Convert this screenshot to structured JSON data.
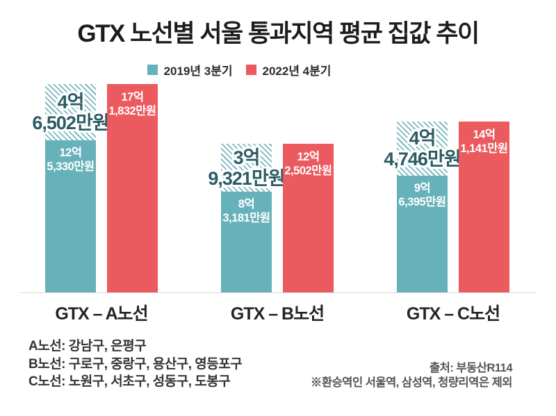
{
  "title": "GTX 노선별 서울 통과지역 평균 집값 추이",
  "legend": [
    {
      "label": "2019년 3분기",
      "color": "#67b2ba"
    },
    {
      "label": "2022년 4분기",
      "color": "#eb5a5e"
    }
  ],
  "colors": {
    "bar_2019": "#67b2ba",
    "bar_2022": "#eb5a5e",
    "hatch_stripe": "#79b7be",
    "increase_text": "#2b5c64",
    "axis_line": "#d9d9d9"
  },
  "chart_data": {
    "type": "bar",
    "title": "GTX 노선별 서울 통과지역 평균 집값 추이",
    "unit": "만원",
    "categories": [
      "GTX – A노선",
      "GTX – B노선",
      "GTX – C노선"
    ],
    "series": [
      {
        "name": "2019년 3분기",
        "color": "#67b2ba",
        "values": [
          125330,
          83181,
          96395
        ],
        "value_labels": [
          [
            "12억",
            "5,330만원"
          ],
          [
            "8억",
            "3,181만원"
          ],
          [
            "9억",
            "6,395만원"
          ]
        ]
      },
      {
        "name": "2022년 4분기",
        "color": "#eb5a5e",
        "values": [
          171832,
          122502,
          141141
        ],
        "value_labels": [
          [
            "17억",
            "1,832만원"
          ],
          [
            "12억",
            "2,502만원"
          ],
          [
            "14억",
            "1,141만원"
          ]
        ]
      }
    ],
    "increase_overlay": {
      "description": "hatched segment stacked on 2019 bar showing price increase up to the 2022 level",
      "values": [
        46502,
        39321,
        44746
      ],
      "value_labels": [
        [
          "4억",
          "6,502만원"
        ],
        [
          "3억",
          "9,321만원"
        ],
        [
          "4억",
          "4,746만원"
        ]
      ]
    },
    "ylim": [
      0,
      180000
    ],
    "grid": false,
    "legend_position": "top-center"
  },
  "footnotes": {
    "lines": [
      "A노선: 강남구, 은평구",
      "B노선: 구로구, 중랑구, 용산구, 영등포구",
      "C노선: 노원구, 서초구, 성동구, 도봉구"
    ],
    "source": "출처: 부동산R114",
    "note": "※환승역인 서울역, 삼성역, 청량리역은 제외"
  }
}
